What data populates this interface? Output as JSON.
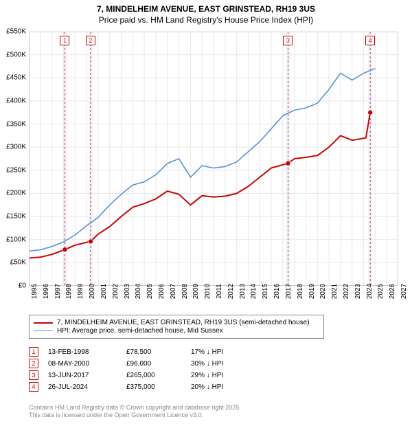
{
  "title_line1": "7, MINDELHEIM AVENUE, EAST GRINSTEAD, RH19 3US",
  "title_line2": "Price paid vs. HM Land Registry's House Price Index (HPI)",
  "chart": {
    "type": "line",
    "background_color": "#ffffff",
    "grid_color": "#e8e8e8",
    "xlim": [
      1995,
      2027
    ],
    "ylim": [
      0,
      550000
    ],
    "y_ticks": [
      0,
      50000,
      100000,
      150000,
      200000,
      250000,
      300000,
      350000,
      400000,
      450000,
      500000,
      550000
    ],
    "y_tick_labels": [
      "£0",
      "£50K",
      "£100K",
      "£150K",
      "£200K",
      "£250K",
      "£300K",
      "£350K",
      "£400K",
      "£450K",
      "£500K",
      "£550K"
    ],
    "x_ticks": [
      1995,
      1996,
      1997,
      1998,
      1999,
      2000,
      2001,
      2002,
      2003,
      2004,
      2005,
      2006,
      2007,
      2008,
      2009,
      2010,
      2011,
      2012,
      2013,
      2014,
      2015,
      2016,
      2017,
      2018,
      2019,
      2020,
      2021,
      2022,
      2023,
      2024,
      2025,
      2026,
      2027
    ],
    "shaded_bands": [
      {
        "from": 1998.0,
        "to": 1998.3,
        "color": "#eef2f8"
      },
      {
        "from": 2000.2,
        "to": 2000.5,
        "color": "#eef2f8"
      },
      {
        "from": 2017.3,
        "to": 2017.6,
        "color": "#eef2f8"
      },
      {
        "from": 2024.4,
        "to": 2024.7,
        "color": "#eef2f8"
      }
    ],
    "series": [
      {
        "name": "property",
        "label": "7, MINDELHEIM AVENUE, EAST GRINSTEAD, RH19 3US (semi-detached house)",
        "color": "#cc0000",
        "line_width": 2,
        "data": [
          [
            1995,
            60000
          ],
          [
            1996,
            62000
          ],
          [
            1997,
            68000
          ],
          [
            1998.12,
            78500
          ],
          [
            1999,
            88000
          ],
          [
            2000.35,
            96000
          ],
          [
            2001,
            112000
          ],
          [
            2002,
            128000
          ],
          [
            2003,
            150000
          ],
          [
            2004,
            170000
          ],
          [
            2005,
            178000
          ],
          [
            2006,
            188000
          ],
          [
            2007,
            205000
          ],
          [
            2008,
            198000
          ],
          [
            2009,
            175000
          ],
          [
            2010,
            195000
          ],
          [
            2011,
            192000
          ],
          [
            2012,
            194000
          ],
          [
            2013,
            200000
          ],
          [
            2014,
            215000
          ],
          [
            2015,
            235000
          ],
          [
            2016,
            255000
          ],
          [
            2017.45,
            265000
          ],
          [
            2018,
            275000
          ],
          [
            2019,
            278000
          ],
          [
            2020,
            282000
          ],
          [
            2021,
            300000
          ],
          [
            2022,
            325000
          ],
          [
            2023,
            315000
          ],
          [
            2024.2,
            320000
          ],
          [
            2024.57,
            375000
          ]
        ],
        "markers": [
          {
            "x": 1998.12,
            "y": 78500
          },
          {
            "x": 2000.35,
            "y": 96000
          },
          {
            "x": 2017.45,
            "y": 265000
          },
          {
            "x": 2024.57,
            "y": 375000
          }
        ]
      },
      {
        "name": "hpi",
        "label": "HPI: Average price, semi-detached house, Mid Sussex",
        "color": "#5b8fd6",
        "line_width": 1.6,
        "data": [
          [
            1995,
            75000
          ],
          [
            1996,
            78000
          ],
          [
            1997,
            85000
          ],
          [
            1998,
            95000
          ],
          [
            1999,
            110000
          ],
          [
            2000,
            130000
          ],
          [
            2001,
            148000
          ],
          [
            2002,
            175000
          ],
          [
            2003,
            198000
          ],
          [
            2004,
            218000
          ],
          [
            2005,
            225000
          ],
          [
            2006,
            240000
          ],
          [
            2007,
            265000
          ],
          [
            2008,
            275000
          ],
          [
            2009,
            235000
          ],
          [
            2010,
            260000
          ],
          [
            2011,
            255000
          ],
          [
            2012,
            258000
          ],
          [
            2013,
            268000
          ],
          [
            2014,
            290000
          ],
          [
            2015,
            312000
          ],
          [
            2016,
            340000
          ],
          [
            2017,
            368000
          ],
          [
            2018,
            380000
          ],
          [
            2019,
            385000
          ],
          [
            2020,
            395000
          ],
          [
            2021,
            425000
          ],
          [
            2022,
            460000
          ],
          [
            2023,
            445000
          ],
          [
            2024,
            460000
          ],
          [
            2025,
            470000
          ]
        ]
      }
    ],
    "event_markers": [
      {
        "num": "1",
        "x": 1998.12,
        "color": "#cc0000"
      },
      {
        "num": "2",
        "x": 2000.35,
        "color": "#cc0000"
      },
      {
        "num": "3",
        "x": 2017.45,
        "color": "#cc0000"
      },
      {
        "num": "4",
        "x": 2024.57,
        "color": "#cc0000"
      }
    ]
  },
  "legend": [
    {
      "color": "#cc0000",
      "width": 2,
      "label": "7, MINDELHEIM AVENUE, EAST GRINSTEAD, RH19 3US (semi-detached house)"
    },
    {
      "color": "#5b8fd6",
      "width": 1.6,
      "label": "HPI: Average price, semi-detached house, Mid Sussex"
    }
  ],
  "events": [
    {
      "num": "1",
      "date": "13-FEB-1998",
      "price": "£78,500",
      "diff": "17% ↓ HPI",
      "color": "#cc0000"
    },
    {
      "num": "2",
      "date": "08-MAY-2000",
      "price": "£96,000",
      "diff": "30% ↓ HPI",
      "color": "#cc0000"
    },
    {
      "num": "3",
      "date": "13-JUN-2017",
      "price": "£265,000",
      "diff": "29% ↓ HPI",
      "color": "#cc0000"
    },
    {
      "num": "4",
      "date": "26-JUL-2024",
      "price": "£375,000",
      "diff": "20% ↓ HPI",
      "color": "#cc0000"
    }
  ],
  "footer_line1": "Contains HM Land Registry data © Crown copyright and database right 2025.",
  "footer_line2": "This data is licensed under the Open Government Licence v3.0."
}
